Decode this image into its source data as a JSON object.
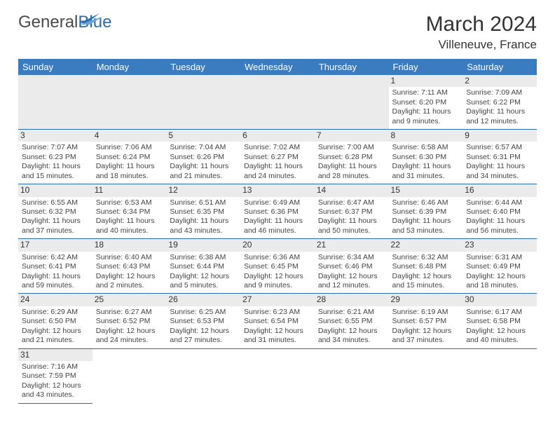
{
  "brand": {
    "part1": "General",
    "part2": "Blue"
  },
  "calendar": {
    "title": "March 2024",
    "location": "Villeneuve, France",
    "header_bg": "#3b7bbf",
    "header_fg": "#ffffff",
    "rule_color": "#2a6db2",
    "daynum_bg": "#ebebeb",
    "fontsize_title": 30,
    "fontsize_location": 17,
    "fontsize_header": 13,
    "fontsize_cell": 10.5,
    "columns": [
      "Sunday",
      "Monday",
      "Tuesday",
      "Wednesday",
      "Thursday",
      "Friday",
      "Saturday"
    ],
    "first_weekday": 5,
    "days": [
      {
        "n": 1,
        "sunrise": "7:11 AM",
        "sunset": "6:20 PM",
        "daylight": "11 hours and 9 minutes."
      },
      {
        "n": 2,
        "sunrise": "7:09 AM",
        "sunset": "6:22 PM",
        "daylight": "11 hours and 12 minutes."
      },
      {
        "n": 3,
        "sunrise": "7:07 AM",
        "sunset": "6:23 PM",
        "daylight": "11 hours and 15 minutes."
      },
      {
        "n": 4,
        "sunrise": "7:06 AM",
        "sunset": "6:24 PM",
        "daylight": "11 hours and 18 minutes."
      },
      {
        "n": 5,
        "sunrise": "7:04 AM",
        "sunset": "6:26 PM",
        "daylight": "11 hours and 21 minutes."
      },
      {
        "n": 6,
        "sunrise": "7:02 AM",
        "sunset": "6:27 PM",
        "daylight": "11 hours and 24 minutes."
      },
      {
        "n": 7,
        "sunrise": "7:00 AM",
        "sunset": "6:28 PM",
        "daylight": "11 hours and 28 minutes."
      },
      {
        "n": 8,
        "sunrise": "6:58 AM",
        "sunset": "6:30 PM",
        "daylight": "11 hours and 31 minutes."
      },
      {
        "n": 9,
        "sunrise": "6:57 AM",
        "sunset": "6:31 PM",
        "daylight": "11 hours and 34 minutes."
      },
      {
        "n": 10,
        "sunrise": "6:55 AM",
        "sunset": "6:32 PM",
        "daylight": "11 hours and 37 minutes."
      },
      {
        "n": 11,
        "sunrise": "6:53 AM",
        "sunset": "6:34 PM",
        "daylight": "11 hours and 40 minutes."
      },
      {
        "n": 12,
        "sunrise": "6:51 AM",
        "sunset": "6:35 PM",
        "daylight": "11 hours and 43 minutes."
      },
      {
        "n": 13,
        "sunrise": "6:49 AM",
        "sunset": "6:36 PM",
        "daylight": "11 hours and 46 minutes."
      },
      {
        "n": 14,
        "sunrise": "6:47 AM",
        "sunset": "6:37 PM",
        "daylight": "11 hours and 50 minutes."
      },
      {
        "n": 15,
        "sunrise": "6:46 AM",
        "sunset": "6:39 PM",
        "daylight": "11 hours and 53 minutes."
      },
      {
        "n": 16,
        "sunrise": "6:44 AM",
        "sunset": "6:40 PM",
        "daylight": "11 hours and 56 minutes."
      },
      {
        "n": 17,
        "sunrise": "6:42 AM",
        "sunset": "6:41 PM",
        "daylight": "11 hours and 59 minutes."
      },
      {
        "n": 18,
        "sunrise": "6:40 AM",
        "sunset": "6:43 PM",
        "daylight": "12 hours and 2 minutes."
      },
      {
        "n": 19,
        "sunrise": "6:38 AM",
        "sunset": "6:44 PM",
        "daylight": "12 hours and 5 minutes."
      },
      {
        "n": 20,
        "sunrise": "6:36 AM",
        "sunset": "6:45 PM",
        "daylight": "12 hours and 9 minutes."
      },
      {
        "n": 21,
        "sunrise": "6:34 AM",
        "sunset": "6:46 PM",
        "daylight": "12 hours and 12 minutes."
      },
      {
        "n": 22,
        "sunrise": "6:32 AM",
        "sunset": "6:48 PM",
        "daylight": "12 hours and 15 minutes."
      },
      {
        "n": 23,
        "sunrise": "6:31 AM",
        "sunset": "6:49 PM",
        "daylight": "12 hours and 18 minutes."
      },
      {
        "n": 24,
        "sunrise": "6:29 AM",
        "sunset": "6:50 PM",
        "daylight": "12 hours and 21 minutes."
      },
      {
        "n": 25,
        "sunrise": "6:27 AM",
        "sunset": "6:52 PM",
        "daylight": "12 hours and 24 minutes."
      },
      {
        "n": 26,
        "sunrise": "6:25 AM",
        "sunset": "6:53 PM",
        "daylight": "12 hours and 27 minutes."
      },
      {
        "n": 27,
        "sunrise": "6:23 AM",
        "sunset": "6:54 PM",
        "daylight": "12 hours and 31 minutes."
      },
      {
        "n": 28,
        "sunrise": "6:21 AM",
        "sunset": "6:55 PM",
        "daylight": "12 hours and 34 minutes."
      },
      {
        "n": 29,
        "sunrise": "6:19 AM",
        "sunset": "6:57 PM",
        "daylight": "12 hours and 37 minutes."
      },
      {
        "n": 30,
        "sunrise": "6:17 AM",
        "sunset": "6:58 PM",
        "daylight": "12 hours and 40 minutes."
      },
      {
        "n": 31,
        "sunrise": "7:16 AM",
        "sunset": "7:59 PM",
        "daylight": "12 hours and 43 minutes."
      }
    ],
    "labels": {
      "sunrise": "Sunrise:",
      "sunset": "Sunset:",
      "daylight": "Daylight:"
    }
  }
}
